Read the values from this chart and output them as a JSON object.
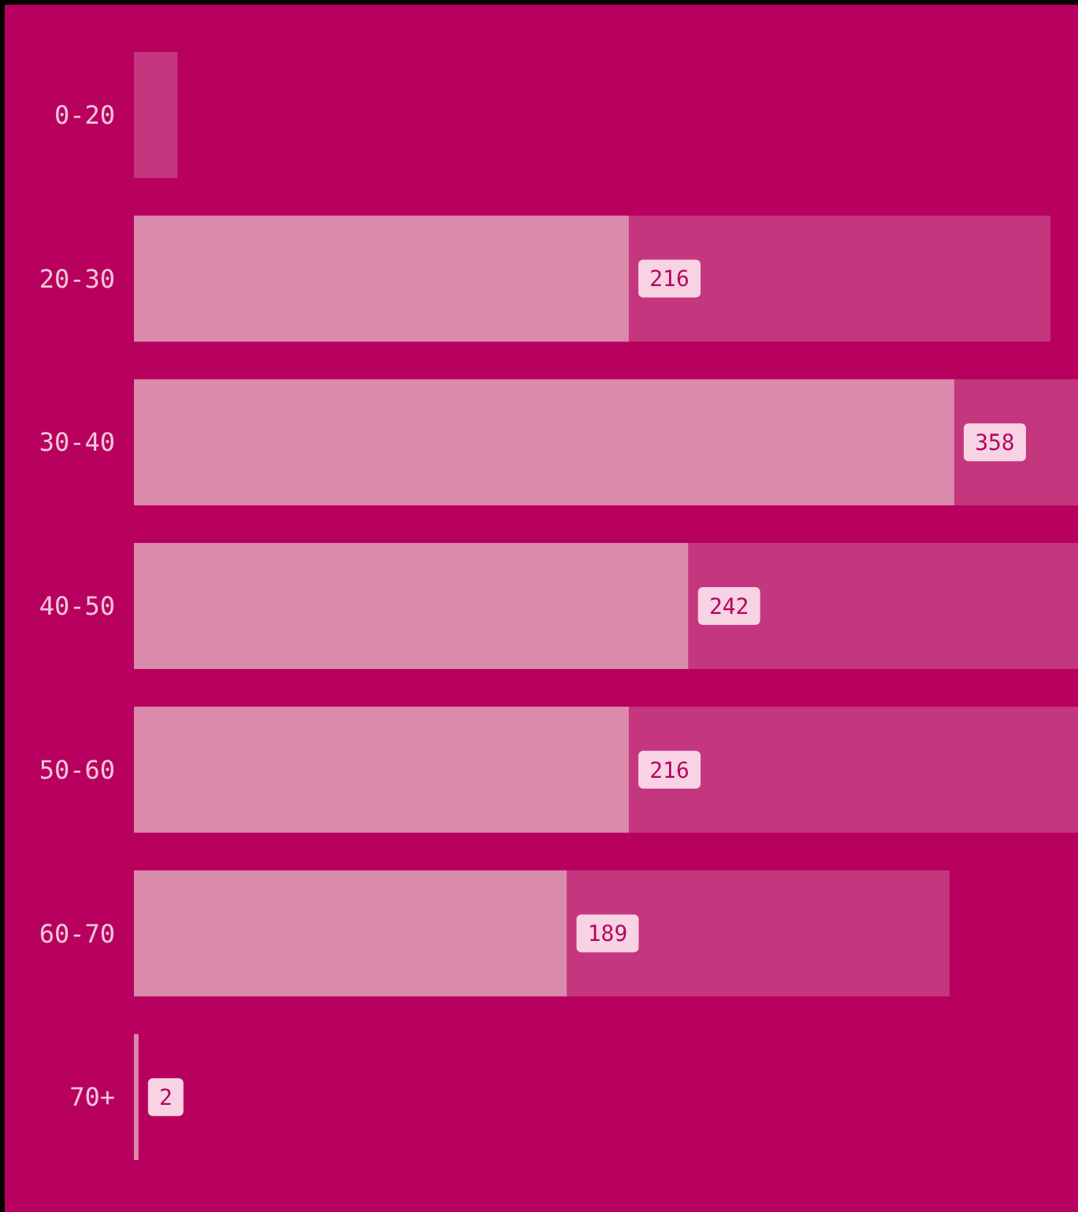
{
  "chart_data": {
    "type": "bar",
    "orientation": "horizontal",
    "stacked": true,
    "categories": [
      "0-20",
      "20-30",
      "30-40",
      "40-50",
      "50-60",
      "60-70",
      "70+"
    ],
    "series": [
      {
        "color": "#da8aab",
        "values": [
          null,
          216,
          358,
          242,
          216,
          189,
          2
        ],
        "value_labels": [
          null,
          "216",
          "358",
          "242",
          "216",
          "189",
          "2"
        ]
      },
      {
        "color": "#c4367e",
        "values": [
          19,
          184,
          54,
          170,
          196,
          167,
          null
        ]
      }
    ]
  }
}
